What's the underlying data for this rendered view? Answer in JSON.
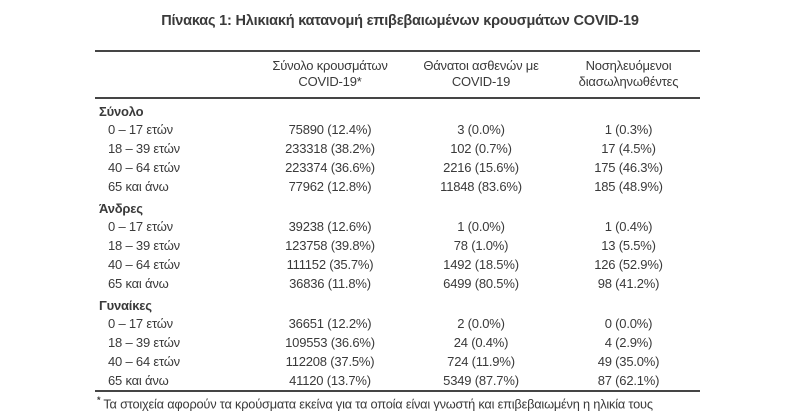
{
  "title": "Πίνακας 1: Ηλικιακή κατανομή επιβεβαιωμένων κρουσμάτων COVID-19",
  "table": {
    "header": {
      "col_cases": {
        "line1": "Σύνολο κρουσμάτων",
        "line2": "COVID-19*"
      },
      "col_deaths": {
        "line1": "Θάνατοι ασθενών με",
        "line2": "COVID-19"
      },
      "col_intubated": {
        "line1": "Νοσηλευόμενοι",
        "line2": "διασωληνωθέντες"
      }
    },
    "sections": [
      {
        "name": "Σύνολο",
        "rows": [
          {
            "label": "0 – 17 ετών",
            "cases": "75890 (12.4%)",
            "deaths": "3 (0.0%)",
            "intubated": "1 (0.3%)"
          },
          {
            "label": "18 – 39 ετών",
            "cases": "233318 (38.2%)",
            "deaths": "102 (0.7%)",
            "intubated": "17 (4.5%)"
          },
          {
            "label": "40 – 64 ετών",
            "cases": "223374 (36.6%)",
            "deaths": "2216 (15.6%)",
            "intubated": "175 (46.3%)"
          },
          {
            "label": "65 και άνω",
            "cases": "77962 (12.8%)",
            "deaths": "11848 (83.6%)",
            "intubated": "185 (48.9%)"
          }
        ]
      },
      {
        "name": "Άνδρες",
        "rows": [
          {
            "label": "0 – 17 ετών",
            "cases": "39238 (12.6%)",
            "deaths": "1 (0.0%)",
            "intubated": "1 (0.4%)"
          },
          {
            "label": "18 – 39 ετών",
            "cases": "123758 (39.8%)",
            "deaths": "78 (1.0%)",
            "intubated": "13 (5.5%)"
          },
          {
            "label": "40 – 64 ετών",
            "cases": "111152 (35.7%)",
            "deaths": "1492 (18.5%)",
            "intubated": "126 (52.9%)"
          },
          {
            "label": "65 και άνω",
            "cases": "36836 (11.8%)",
            "deaths": "6499 (80.5%)",
            "intubated": "98 (41.2%)"
          }
        ]
      },
      {
        "name": "Γυναίκες",
        "rows": [
          {
            "label": "0 – 17 ετών",
            "cases": "36651 (12.2%)",
            "deaths": "2 (0.0%)",
            "intubated": "0 (0.0%)"
          },
          {
            "label": "18 – 39 ετών",
            "cases": "109553 (36.6%)",
            "deaths": "24 (0.4%)",
            "intubated": "4 (2.9%)"
          },
          {
            "label": "40 – 64 ετών",
            "cases": "112208 (37.5%)",
            "deaths": "724 (11.9%)",
            "intubated": "49 (35.0%)"
          },
          {
            "label": "65 και άνω",
            "cases": "41120 (13.7%)",
            "deaths": "5349 (87.7%)",
            "intubated": "87 (62.1%)"
          }
        ]
      }
    ]
  },
  "footnote": {
    "marker": "*",
    "text": "Τα στοιχεία αφορούν τα κρούσματα εκείνα για τα οποία είναι γνωστή και επιβεβαιωμένη η ηλικία τους"
  },
  "colors": {
    "text": "#3a3a3a",
    "rule": "#454545"
  }
}
